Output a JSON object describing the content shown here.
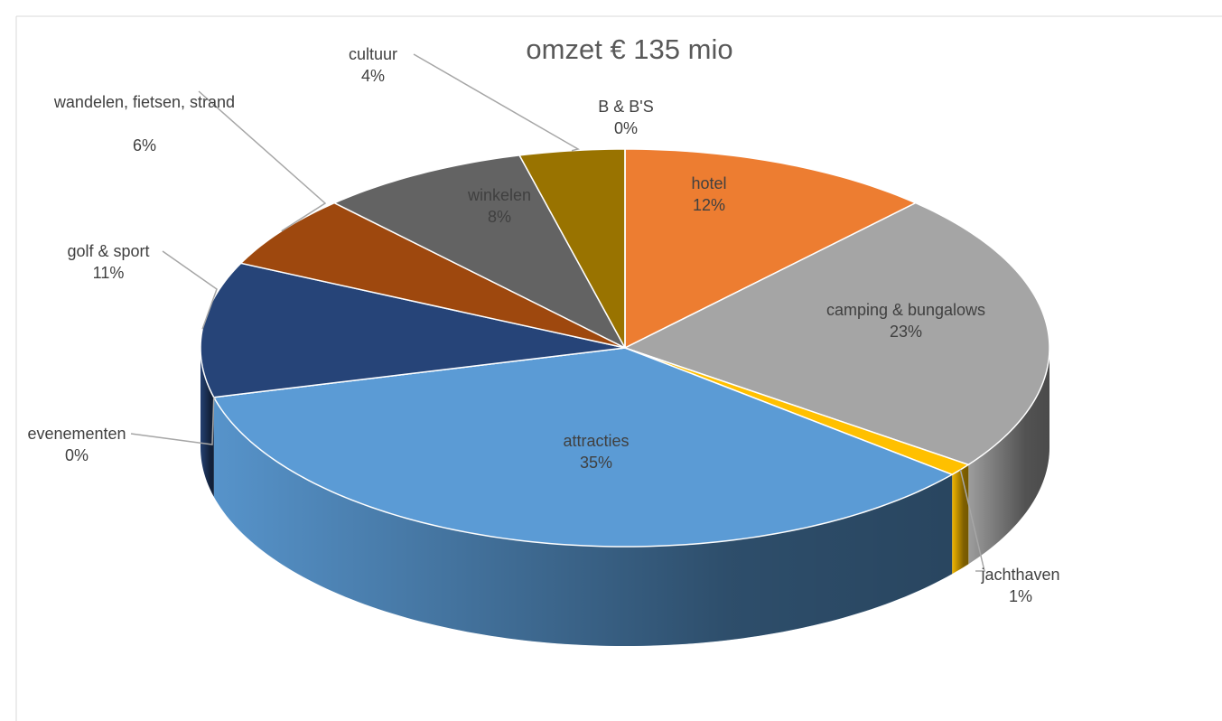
{
  "chart_data": {
    "type": "pie",
    "title": "omzet  € 135 mio",
    "categories": [
      "hotel",
      "camping & bungalows",
      "jachthaven",
      "attracties",
      "evenementen",
      "golf & sport",
      "wandelen, fietsen, strand",
      "winkelen",
      "cultuur",
      "B & B'S"
    ],
    "values": [
      12,
      23,
      1,
      35,
      0,
      11,
      6,
      8,
      4,
      0
    ],
    "value_labels": [
      "12%",
      "23%",
      "1%",
      "35%",
      "0%",
      "11%",
      "6%",
      "8%",
      "4%",
      "0%"
    ],
    "colors": [
      "#ed7d31",
      "#a5a5a5",
      "#ffc000",
      "#5b9bd5",
      "#70ad47",
      "#264478",
      "#9e480e",
      "#636363",
      "#997300",
      "#4472c4"
    ]
  }
}
